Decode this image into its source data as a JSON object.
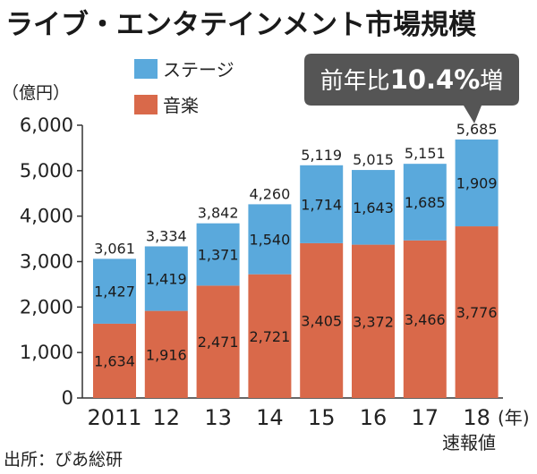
{
  "title": "ライブ・エンタテインメント市場規模",
  "unit_label": "（億円）",
  "x_unit_label": "(年)",
  "preliminary_note": "速報値",
  "source": "出所：ぴあ総研",
  "callout": {
    "prefix": "前年比",
    "value": "10.4%",
    "suffix": "増"
  },
  "colors": {
    "stage": "#5aa9dc",
    "music": "#d9694a",
    "axis": "#333333",
    "callout_bg": "#555555"
  },
  "chart_data": {
    "type": "bar",
    "stacked": true,
    "categories": [
      "2011",
      "12",
      "13",
      "14",
      "15",
      "16",
      "17",
      "18"
    ],
    "series": [
      {
        "name": "音楽",
        "values": [
          1634,
          1916,
          2471,
          2721,
          3405,
          3372,
          3466,
          3776
        ]
      },
      {
        "name": "ステージ",
        "values": [
          1427,
          1419,
          1371,
          1540,
          1714,
          1643,
          1685,
          1909
        ]
      }
    ],
    "totals": [
      3061,
      3334,
      3842,
      4260,
      5119,
      5015,
      5151,
      5685
    ],
    "y_ticks": [
      "0",
      "1,000",
      "2,000",
      "3,000",
      "4,000",
      "5,000",
      "6,000"
    ],
    "ylim": [
      0,
      6000
    ],
    "legend": [
      "ステージ",
      "音楽"
    ],
    "legend_position": "top-left",
    "grid": false
  }
}
